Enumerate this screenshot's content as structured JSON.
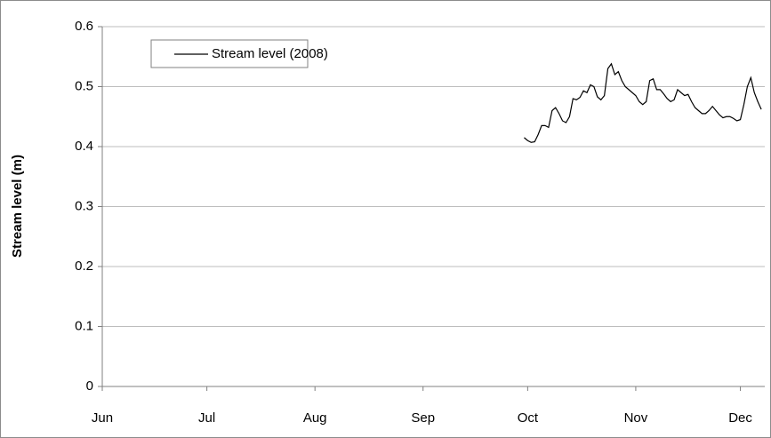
{
  "chart_data": {
    "type": "line",
    "y_label": "Stream level (m)",
    "xlim": [
      0,
      190
    ],
    "xticks": [
      {
        "value": 0,
        "label": "Jun"
      },
      {
        "value": 30,
        "label": "Jul"
      },
      {
        "value": 61,
        "label": "Aug"
      },
      {
        "value": 92,
        "label": "Sep"
      },
      {
        "value": 122,
        "label": "Oct"
      },
      {
        "value": 153,
        "label": "Nov"
      },
      {
        "value": 183,
        "label": "Dec"
      }
    ],
    "ylim": [
      0,
      0.6
    ],
    "yticks": [
      0,
      0.1,
      0.2,
      0.3,
      0.4,
      0.5,
      0.6
    ],
    "grid": true,
    "legend": "upper left",
    "x": [
      121,
      122,
      123,
      124,
      125,
      126,
      127,
      128,
      129,
      130,
      131,
      132,
      133,
      134,
      135,
      136,
      137,
      138,
      139,
      140,
      141,
      142,
      143,
      144,
      145,
      146,
      147,
      148,
      149,
      150,
      151,
      152,
      153,
      154,
      155,
      156,
      157,
      158,
      159,
      160,
      161,
      162,
      163,
      164,
      165,
      166,
      167,
      168,
      169,
      170,
      171,
      172,
      173,
      174,
      175,
      176,
      177,
      178,
      179,
      180,
      181,
      182,
      183,
      184,
      185,
      186,
      187,
      188,
      189
    ],
    "series": [
      {
        "name": "Stream level (2008)",
        "color": "#000000",
        "values": [
          0.415,
          0.41,
          0.407,
          0.408,
          0.42,
          0.435,
          0.435,
          0.432,
          0.46,
          0.465,
          0.455,
          0.443,
          0.44,
          0.45,
          0.48,
          0.478,
          0.482,
          0.493,
          0.49,
          0.503,
          0.5,
          0.483,
          0.478,
          0.485,
          0.53,
          0.538,
          0.52,
          0.525,
          0.51,
          0.5,
          0.495,
          0.49,
          0.485,
          0.475,
          0.47,
          0.475,
          0.51,
          0.513,
          0.495,
          0.495,
          0.488,
          0.48,
          0.475,
          0.478,
          0.495,
          0.49,
          0.485,
          0.487,
          0.475,
          0.465,
          0.46,
          0.455,
          0.455,
          0.46,
          0.467,
          0.46,
          0.453,
          0.448,
          0.45,
          0.45,
          0.447,
          0.443,
          0.445,
          0.47,
          0.5,
          0.515,
          0.49,
          0.475,
          0.462
        ]
      }
    ]
  }
}
